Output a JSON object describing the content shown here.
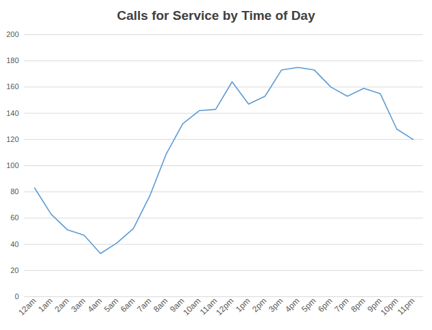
{
  "chart_data": {
    "type": "line",
    "title": "Calls for Service by Time of Day",
    "categories": [
      "12am",
      "1am",
      "2am",
      "3am",
      "4am",
      "5am",
      "6am",
      "7am",
      "8am",
      "9am",
      "10am",
      "11am",
      "12pm",
      "1pm",
      "2pm",
      "3pm",
      "4pm",
      "5pm",
      "6pm",
      "7pm",
      "8pm",
      "9pm",
      "10pm",
      "11pm"
    ],
    "values": [
      83,
      63,
      51,
      47,
      33,
      41,
      52,
      77,
      109,
      132,
      142,
      143,
      164,
      147,
      153,
      173,
      175,
      173,
      160,
      153,
      159,
      155,
      128,
      120
    ],
    "color": "#5b9bd5",
    "ylim": [
      0,
      200
    ],
    "yticks": [
      0,
      20,
      40,
      60,
      80,
      100,
      120,
      140,
      160,
      180,
      200
    ],
    "grid": true
  }
}
